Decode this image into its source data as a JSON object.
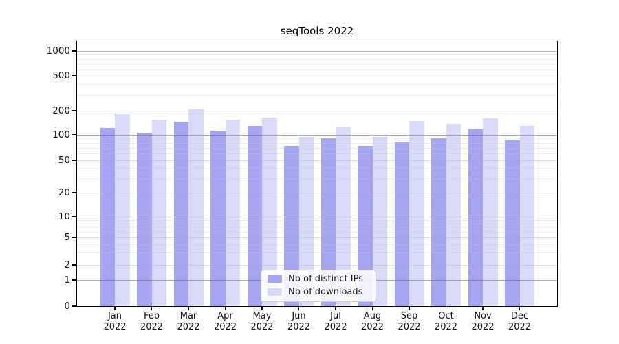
{
  "title": "seqTools 2022",
  "chart_data": {
    "type": "bar",
    "title": "seqTools 2022",
    "xlabel": "",
    "ylabel": "",
    "yscale": "log (with 0 baseline)",
    "grid": true,
    "legend_position": "inside-bottom-center",
    "yticks": [
      0,
      1,
      2,
      5,
      10,
      20,
      50,
      100,
      200,
      500,
      1000
    ],
    "ylim": [
      0,
      1300
    ],
    "categories": [
      "Jan 2022",
      "Feb 2022",
      "Mar 2022",
      "Apr 2022",
      "May 2022",
      "Jun 2022",
      "Jul 2022",
      "Aug 2022",
      "Sep 2022",
      "Oct 2022",
      "Nov 2022",
      "Dec 2022"
    ],
    "series": [
      {
        "name": "Nb of distinct IPs",
        "color": "#a5a5f2",
        "values": [
          120,
          105,
          145,
          112,
          128,
          74,
          90,
          74,
          81,
          90,
          117,
          85
        ]
      },
      {
        "name": "Nb of downloads",
        "color": "#d9d9f8",
        "values": [
          182,
          152,
          205,
          153,
          161,
          93,
          125,
          93,
          147,
          135,
          158,
          127
        ]
      }
    ]
  }
}
